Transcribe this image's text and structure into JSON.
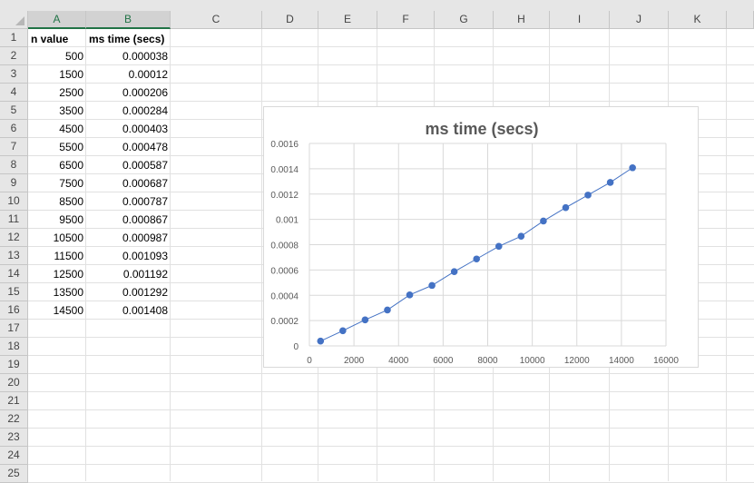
{
  "spreadsheet": {
    "columns": [
      "A",
      "B",
      "C",
      "D",
      "E",
      "F",
      "G",
      "H",
      "I",
      "J",
      "K"
    ],
    "rows": [
      "1",
      "2",
      "3",
      "4",
      "5",
      "6",
      "7",
      "8",
      "9",
      "10",
      "11",
      "12",
      "13",
      "14",
      "15",
      "16",
      "17",
      "18",
      "19",
      "20",
      "21",
      "22",
      "23",
      "24",
      "25"
    ],
    "headers": {
      "a1": "n value",
      "b1": "ms time (secs)"
    },
    "table": [
      [
        "500",
        "0.000038"
      ],
      [
        "1500",
        "0.00012"
      ],
      [
        "2500",
        "0.000206"
      ],
      [
        "3500",
        "0.000284"
      ],
      [
        "4500",
        "0.000403"
      ],
      [
        "5500",
        "0.000478"
      ],
      [
        "6500",
        "0.000587"
      ],
      [
        "7500",
        "0.000687"
      ],
      [
        "8500",
        "0.000787"
      ],
      [
        "9500",
        "0.000867"
      ],
      [
        "10500",
        "0.000987"
      ],
      [
        "11500",
        "0.001093"
      ],
      [
        "12500",
        "0.001192"
      ],
      [
        "13500",
        "0.001292"
      ],
      [
        "14500",
        "0.001408"
      ]
    ]
  },
  "colors": {
    "series": "#4472c4",
    "grid": "#d9d9d9",
    "header_bg": "#e6e6e6",
    "accent": "#217346"
  },
  "chart_data": {
    "type": "scatter",
    "title": "ms time (secs)",
    "xlabel": "",
    "ylabel": "",
    "x": [
      500,
      1500,
      2500,
      3500,
      4500,
      5500,
      6500,
      7500,
      8500,
      9500,
      10500,
      11500,
      12500,
      13500,
      14500
    ],
    "series": [
      {
        "values": [
          3.8e-05,
          0.00012,
          0.000206,
          0.000284,
          0.000403,
          0.000478,
          0.000587,
          0.000687,
          0.000787,
          0.000867,
          0.000987,
          0.001093,
          0.001192,
          0.001292,
          0.001408
        ]
      }
    ],
    "xlim": [
      0,
      16000
    ],
    "ylim": [
      0,
      0.0016
    ],
    "xticks": [
      "0",
      "2000",
      "4000",
      "6000",
      "8000",
      "10000",
      "12000",
      "14000",
      "16000"
    ],
    "yticks": [
      "0",
      "0.0002",
      "0.0004",
      "0.0006",
      "0.0008",
      "0.001",
      "0.0012",
      "0.0014",
      "0.0016"
    ],
    "grid": true,
    "markers": "circle",
    "lines": "straight"
  }
}
